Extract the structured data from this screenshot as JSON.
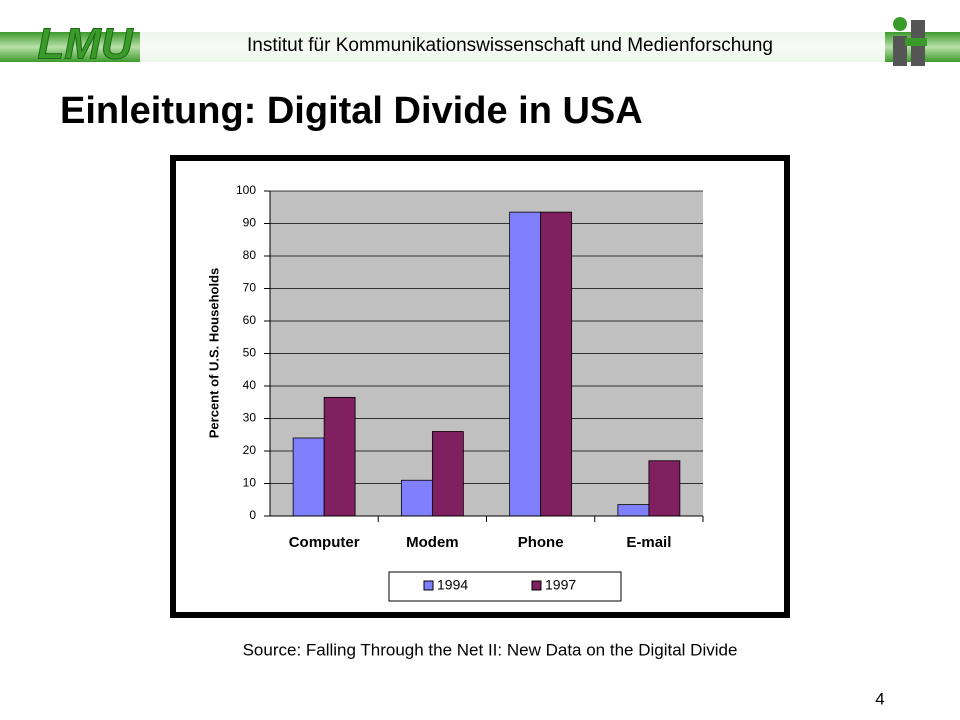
{
  "header": {
    "logo": "LMU",
    "institute": "Institut für Kommunikationswissenschaft und Medienforschung"
  },
  "title": "Einleitung: Digital Divide in USA",
  "source": "Source: Falling Through the Net II: New Data on the Digital Divide",
  "page_number": "4",
  "chart_data": {
    "type": "bar",
    "ylabel": "Percent of U.S. Households",
    "categories": [
      "Computer",
      "Modem",
      "Phone",
      "E-mail"
    ],
    "series": [
      {
        "name": "1994",
        "color": "#8080ff",
        "values": [
          24,
          11,
          93.5,
          3.5
        ]
      },
      {
        "name": "1997",
        "color": "#802060",
        "values": [
          36.5,
          26,
          93.5,
          17
        ]
      }
    ],
    "ylim": [
      0,
      100
    ],
    "yticks": [
      0,
      10,
      20,
      30,
      40,
      50,
      60,
      70,
      80,
      90,
      100
    ],
    "grid": true
  }
}
